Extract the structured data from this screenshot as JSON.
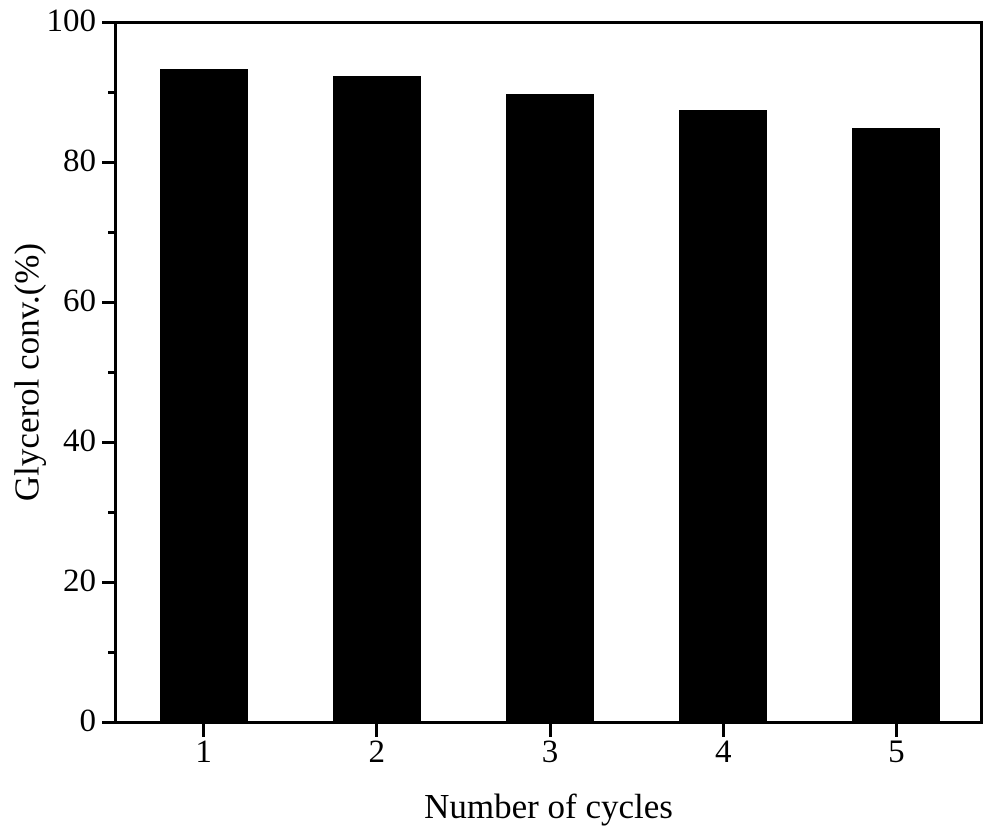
{
  "chart_data": {
    "type": "bar",
    "title": "",
    "xlabel": "Number of cycles",
    "ylabel": "Glycerol conv.(%)",
    "categories": [
      "1",
      "2",
      "3",
      "4",
      "5"
    ],
    "values": [
      93.4,
      92.4,
      89.8,
      87.5,
      85.0
    ],
    "ylim": [
      0,
      100
    ],
    "yticks_major": [
      0,
      20,
      40,
      60,
      80,
      100
    ],
    "yticks_minor": [
      10,
      30,
      50,
      70,
      90
    ],
    "bar_color": "#000000",
    "axis_color": "#000000",
    "background_color": "#ffffff",
    "grid": "off",
    "legend": "none"
  }
}
